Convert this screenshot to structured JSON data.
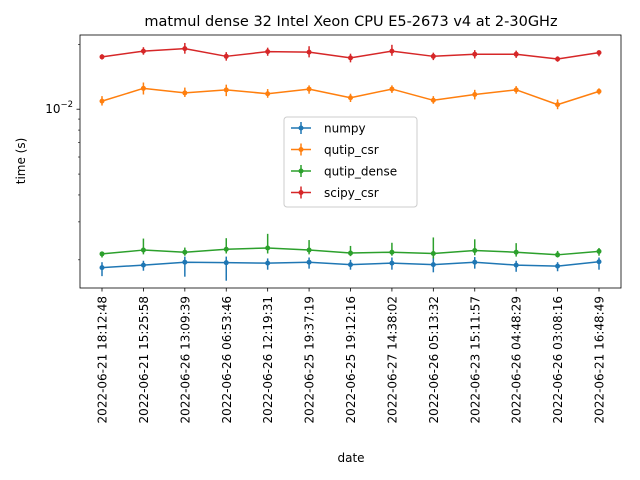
{
  "chart_data": {
    "type": "line",
    "title": "matmul dense 32 Intel Xeon CPU E5-2673 v4 at 2-30GHz",
    "xlabel": "date",
    "ylabel": "time (s)",
    "y_scale": "log",
    "ylim": [
      0.00148,
      0.0221
    ],
    "y_ticks": [
      {
        "value": 0.01,
        "base": "10",
        "exp": "−2"
      }
    ],
    "grid": false,
    "legend_position": "center",
    "categories": [
      "2022-06-21 18:12:48",
      "2022-06-21 15:25:58",
      "2022-06-26 13:09:39",
      "2022-06-26 06:53:46",
      "2022-06-26 12:19:31",
      "2022-06-25 19:37:19",
      "2022-06-25 19:12:16",
      "2022-06-27 14:38:02",
      "2022-06-26 05:13:32",
      "2022-06-23 15:11:57",
      "2022-06-26 04:48:29",
      "2022-06-26 03:08:16",
      "2022-06-21 16:48:49"
    ],
    "series": [
      {
        "name": "numpy",
        "color": "#1f77b4",
        "values": [
          0.00184,
          0.00189,
          0.00195,
          0.00194,
          0.00193,
          0.00195,
          0.0019,
          0.00193,
          0.0019,
          0.00195,
          0.00189,
          0.00187,
          0.00196
        ],
        "err_low": [
          0.00168,
          0.00178,
          0.00167,
          0.0016,
          0.0018,
          0.00182,
          0.0018,
          0.0018,
          0.00175,
          0.00182,
          0.00176,
          0.00177,
          0.0018
        ],
        "err_high": [
          0.00195,
          0.00198,
          0.00207,
          0.00207,
          0.00203,
          0.00205,
          0.002,
          0.00205,
          0.00205,
          0.00206,
          0.00198,
          0.00195,
          0.00205
        ]
      },
      {
        "name": "qutip_csr",
        "color": "#ff7f0e",
        "values": [
          0.0109,
          0.0125,
          0.0119,
          0.0123,
          0.0118,
          0.0124,
          0.0113,
          0.0124,
          0.011,
          0.0117,
          0.0123,
          0.0105,
          0.0121
        ],
        "err_low": [
          0.0104,
          0.0117,
          0.0114,
          0.0115,
          0.0113,
          0.0118,
          0.0108,
          0.0119,
          0.0106,
          0.0111,
          0.0118,
          0.01,
          0.0117
        ],
        "err_high": [
          0.0115,
          0.0133,
          0.0126,
          0.013,
          0.0124,
          0.0129,
          0.0118,
          0.0129,
          0.0115,
          0.0123,
          0.0128,
          0.0111,
          0.0125
        ]
      },
      {
        "name": "qutip_dense",
        "color": "#2ca02c",
        "values": [
          0.00213,
          0.00222,
          0.00217,
          0.00224,
          0.00227,
          0.00222,
          0.00215,
          0.00217,
          0.00214,
          0.00221,
          0.00217,
          0.00211,
          0.00219
        ],
        "err_low": [
          0.00205,
          0.00212,
          0.00209,
          0.00214,
          0.00214,
          0.00212,
          0.00208,
          0.00209,
          0.00203,
          0.0021,
          0.00207,
          0.00205,
          0.00209
        ],
        "err_high": [
          0.00218,
          0.00251,
          0.00228,
          0.00252,
          0.00264,
          0.00247,
          0.00232,
          0.0024,
          0.00254,
          0.00249,
          0.00239,
          0.0022,
          0.00227
        ]
      },
      {
        "name": "scipy_csr",
        "color": "#d62728",
        "values": [
          0.0175,
          0.0186,
          0.0191,
          0.0176,
          0.0185,
          0.0184,
          0.0173,
          0.0186,
          0.0176,
          0.018,
          0.018,
          0.0171,
          0.0183
        ],
        "err_low": [
          0.017,
          0.0179,
          0.0181,
          0.0168,
          0.0177,
          0.0174,
          0.0165,
          0.0177,
          0.0169,
          0.0172,
          0.0173,
          0.0166,
          0.0176
        ],
        "err_high": [
          0.018,
          0.0194,
          0.0203,
          0.0184,
          0.0193,
          0.0196,
          0.0181,
          0.0199,
          0.0183,
          0.0188,
          0.0187,
          0.0176,
          0.0187
        ]
      }
    ]
  }
}
